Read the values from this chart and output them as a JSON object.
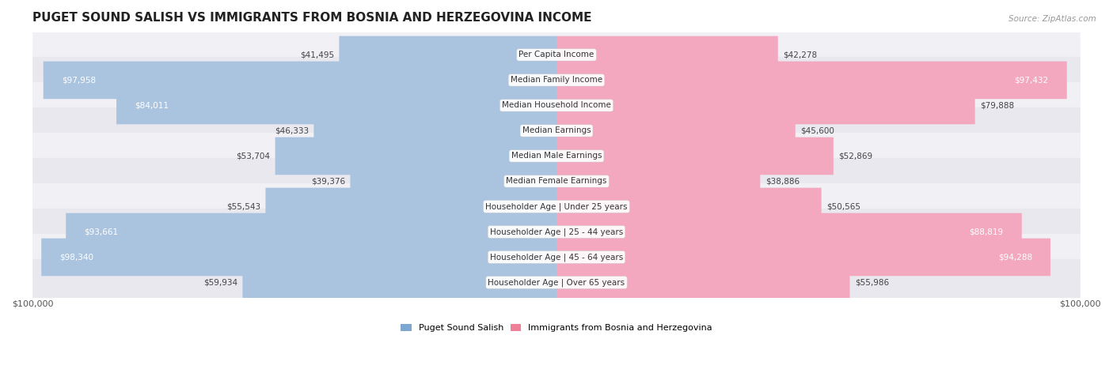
{
  "title": "PUGET SOUND SALISH VS IMMIGRANTS FROM BOSNIA AND HERZEGOVINA INCOME",
  "source": "Source: ZipAtlas.com",
  "categories": [
    "Per Capita Income",
    "Median Family Income",
    "Median Household Income",
    "Median Earnings",
    "Median Male Earnings",
    "Median Female Earnings",
    "Householder Age | Under 25 years",
    "Householder Age | 25 - 44 years",
    "Householder Age | 45 - 64 years",
    "Householder Age | Over 65 years"
  ],
  "left_values": [
    41495,
    97958,
    84011,
    46333,
    53704,
    39376,
    55543,
    93661,
    98340,
    59934
  ],
  "right_values": [
    42278,
    97432,
    79888,
    45600,
    52869,
    38886,
    50565,
    88819,
    94288,
    55986
  ],
  "left_color": "#aac4e0",
  "right_color": "#f4a8bf",
  "left_label": "Puget Sound Salish",
  "right_label": "Immigrants from Bosnia and Herzegovina",
  "max_value": 100000,
  "left_label_color_box": "#7ba7d0",
  "right_label_color_box": "#f08098",
  "title_fontsize": 11,
  "value_fontsize": 7.5,
  "category_fontsize": 7.5,
  "inside_value_threshold": 0.83
}
